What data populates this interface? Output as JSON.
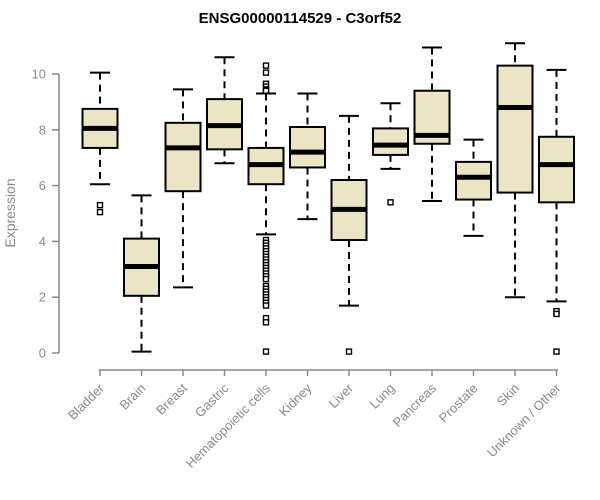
{
  "title": "ENSG00000114529 - C3orf52",
  "colors": {
    "box_fill": "#ece5c5",
    "box_stroke": "#000000",
    "median": "#000000",
    "whisker": "#000000",
    "axis": "#898989",
    "tick_label": "#8a8a8a",
    "title": "#000000",
    "background": "#ffffff"
  },
  "chart_data": {
    "type": "boxplot",
    "title": "ENSG00000114529 - C3orf52",
    "xlabel": "",
    "ylabel": "Expression",
    "ylim": [
      0,
      11.2
    ],
    "yticks": [
      0,
      2,
      4,
      6,
      8,
      10
    ],
    "grid": false,
    "legend": "none",
    "categories": [
      "Bladder",
      "Brain",
      "Breast",
      "Gastric",
      "Hematopoietic cells",
      "Kidney",
      "Liver",
      "Lung",
      "Pancreas",
      "Prostate",
      "Skin",
      "Unknown / Other"
    ],
    "series": [
      {
        "name": "Bladder",
        "whisker_low": 6.05,
        "q1": 7.35,
        "median": 8.05,
        "q3": 8.75,
        "whisker_high": 10.05,
        "outliers": [
          5.3,
          5.05
        ]
      },
      {
        "name": "Brain",
        "whisker_low": 0.05,
        "q1": 2.05,
        "median": 3.1,
        "q3": 4.1,
        "whisker_high": 5.65,
        "outliers": []
      },
      {
        "name": "Breast",
        "whisker_low": 2.35,
        "q1": 5.8,
        "median": 7.35,
        "q3": 8.25,
        "whisker_high": 9.45,
        "outliers": []
      },
      {
        "name": "Gastric",
        "whisker_low": 6.8,
        "q1": 7.3,
        "median": 8.15,
        "q3": 9.1,
        "whisker_high": 10.6,
        "outliers": []
      },
      {
        "name": "Hematopoietic cells",
        "whisker_low": 4.25,
        "q1": 6.05,
        "median": 6.75,
        "q3": 7.35,
        "whisker_high": 9.3,
        "outliers": [
          10.3,
          10.05,
          9.65,
          9.55,
          9.45,
          9.4,
          4.05,
          3.95,
          3.85,
          3.75,
          3.65,
          3.55,
          3.45,
          3.35,
          3.25,
          3.15,
          3.05,
          2.95,
          2.85,
          2.75,
          2.65,
          2.4,
          2.3,
          2.2,
          2.1,
          2.0,
          1.9,
          1.8,
          1.7,
          1.25,
          1.1,
          0.05
        ]
      },
      {
        "name": "Kidney",
        "whisker_low": 4.8,
        "q1": 6.65,
        "median": 7.2,
        "q3": 8.1,
        "whisker_high": 9.3,
        "outliers": []
      },
      {
        "name": "Liver",
        "whisker_low": 1.7,
        "q1": 4.05,
        "median": 5.15,
        "q3": 6.2,
        "whisker_high": 8.5,
        "outliers": [
          0.05
        ]
      },
      {
        "name": "Lung",
        "whisker_low": 6.6,
        "q1": 7.1,
        "median": 7.45,
        "q3": 8.05,
        "whisker_high": 8.95,
        "outliers": [
          5.4
        ]
      },
      {
        "name": "Pancreas",
        "whisker_low": 5.45,
        "q1": 7.5,
        "median": 7.8,
        "q3": 9.4,
        "whisker_high": 10.95,
        "outliers": []
      },
      {
        "name": "Prostate",
        "whisker_low": 4.2,
        "q1": 5.5,
        "median": 6.3,
        "q3": 6.85,
        "whisker_high": 7.65,
        "outliers": []
      },
      {
        "name": "Skin",
        "whisker_low": 2.0,
        "q1": 5.75,
        "median": 8.8,
        "q3": 10.3,
        "whisker_high": 11.1,
        "outliers": []
      },
      {
        "name": "Unknown / Other",
        "whisker_low": 1.85,
        "q1": 5.4,
        "median": 6.75,
        "q3": 7.75,
        "whisker_high": 10.15,
        "outliers": [
          1.5,
          1.4,
          0.05
        ]
      }
    ]
  }
}
